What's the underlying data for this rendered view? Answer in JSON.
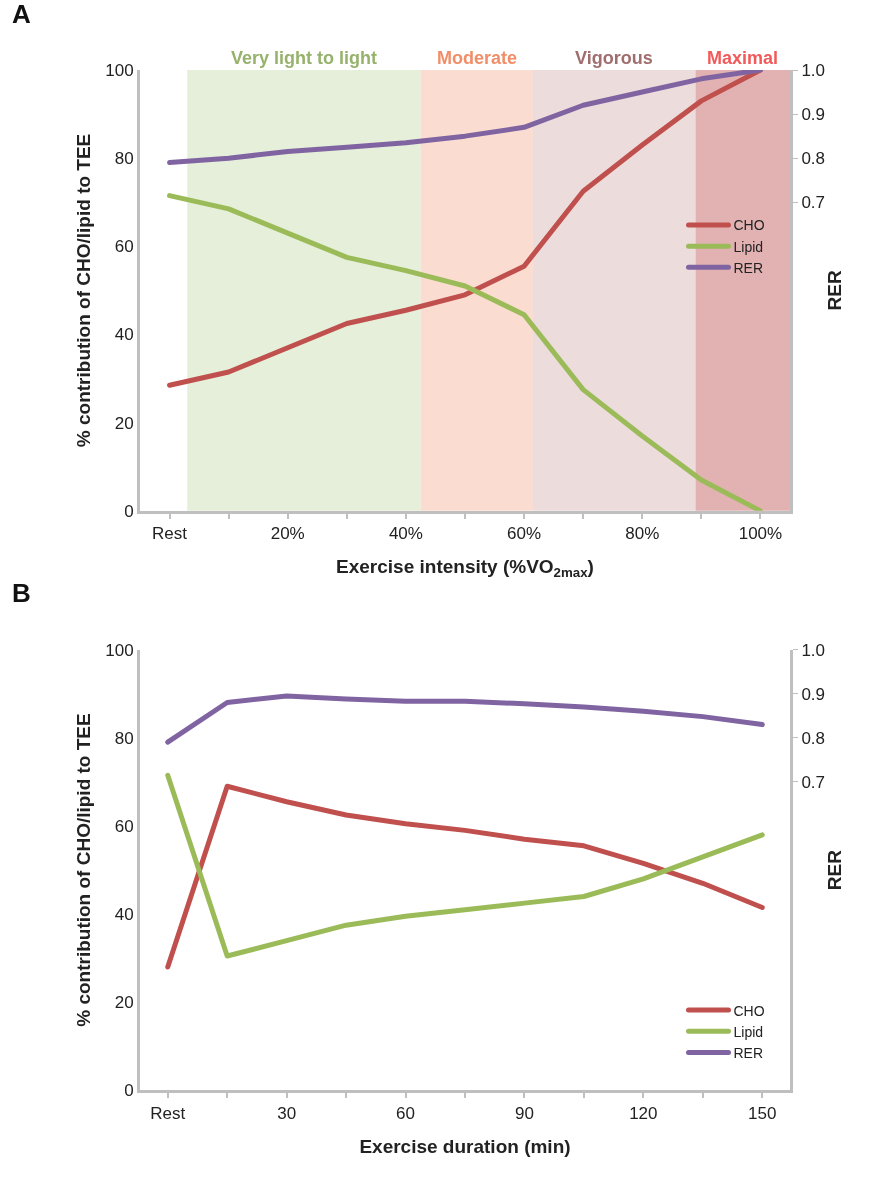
{
  "chart_data": [
    {
      "type": "line",
      "title": "A",
      "xlabel": "Exercise intensity (%VO$_{2max}$)",
      "ylabel": "% contribution of CHO/lipid to TEE",
      "y2label": "RER",
      "x": [
        0,
        10,
        20,
        30,
        40,
        50,
        60,
        70,
        80,
        90,
        100
      ],
      "series": [
        {
          "name": "CHO",
          "color": "#c0504d",
          "values": [
            28.5,
            31.5,
            37,
            42.5,
            45.5,
            49,
            55.5,
            72.5,
            83,
            93,
            100
          ]
        },
        {
          "name": "Lipid",
          "color": "#9bbb59",
          "values": [
            71.5,
            68.5,
            63,
            57.5,
            54.5,
            51,
            44.5,
            27.5,
            17,
            7,
            0
          ]
        },
        {
          "name": "RER",
          "color": "#8064a2",
          "axis": "y2",
          "values": [
            0.79,
            0.8,
            0.815,
            0.825,
            0.835,
            0.85,
            0.87,
            0.92,
            0.95,
            0.98,
            1.0
          ]
        }
      ],
      "xlim": [
        -5,
        105
      ],
      "xticks": [
        {
          "value": 0,
          "label": "Rest"
        },
        {
          "value": 10,
          "label": null
        },
        {
          "value": 20,
          "label": "20%"
        },
        {
          "value": 30,
          "label": null
        },
        {
          "value": 40,
          "label": "40%"
        },
        {
          "value": 50,
          "label": null
        },
        {
          "value": 60,
          "label": "60%"
        },
        {
          "value": 70,
          "label": null
        },
        {
          "value": 80,
          "label": "80%"
        },
        {
          "value": 90,
          "label": null
        },
        {
          "value": 100,
          "label": "100%"
        }
      ],
      "ylim": [
        0,
        100
      ],
      "yticks": [
        0,
        20,
        40,
        60,
        80,
        100
      ],
      "y2lim": [
        0,
        1.0
      ],
      "y2ticks": [
        0.7,
        0.8,
        0.9,
        {
          "value": 1.0,
          "label": "1.0"
        }
      ],
      "bands": [
        {
          "axis": "x",
          "from": 3,
          "to": 42.5,
          "label": "Very light to light",
          "color": "#e6efd9"
        },
        {
          "axis": "x",
          "from": 42.5,
          "to": 61.5,
          "label": "Moderate",
          "color": "#fbdcd0"
        },
        {
          "axis": "x",
          "from": 61.5,
          "to": 89,
          "label": "Vigorous",
          "color": "#ecdcdc"
        },
        {
          "axis": "x",
          "from": 89,
          "to": 105,
          "label": "Maximal",
          "color": "#e2b2b2"
        }
      ],
      "grid": false,
      "legend": "right",
      "marker": "none",
      "line_style": "solid"
    },
    {
      "type": "line",
      "title": "B",
      "xlabel": "Exercise duration (min)",
      "ylabel": "% contribution of CHO/lipid to TEE",
      "y2label": "RER",
      "x": [
        0,
        15,
        30,
        45,
        60,
        75,
        90,
        105,
        120,
        135,
        150
      ],
      "series": [
        {
          "name": "CHO",
          "color": "#c0504d",
          "values": [
            28,
            69,
            65.5,
            62.5,
            60.5,
            59,
            57,
            55.5,
            51.5,
            47,
            41.5
          ]
        },
        {
          "name": "Lipid",
          "color": "#9bbb59",
          "values": [
            71.5,
            30.5,
            34,
            37.5,
            39.5,
            41,
            42.5,
            44,
            48,
            53,
            58
          ]
        },
        {
          "name": "RER",
          "color": "#8064a2",
          "axis": "y2",
          "values": [
            0.79,
            0.88,
            0.895,
            0.888,
            0.883,
            0.883,
            0.877,
            0.87,
            0.86,
            0.848,
            0.83
          ]
        }
      ],
      "xlim": [
        -7,
        157
      ],
      "xticks": [
        {
          "value": 0,
          "label": "Rest"
        },
        {
          "value": 15,
          "label": null
        },
        30,
        {
          "value": 45,
          "label": null
        },
        60,
        {
          "value": 75,
          "label": null
        },
        90,
        {
          "value": 105,
          "label": null
        },
        120,
        {
          "value": 135,
          "label": null
        },
        150
      ],
      "ylim": [
        0,
        100
      ],
      "yticks": [
        0,
        20,
        40,
        60,
        80,
        100
      ],
      "y2lim": [
        0,
        1.0
      ],
      "y2ticks": [
        0.7,
        0.8,
        0.9,
        {
          "value": 1.0,
          "label": "1.0"
        }
      ],
      "grid": false,
      "legend": "bottom right",
      "marker": "none",
      "line_style": "solid"
    }
  ]
}
